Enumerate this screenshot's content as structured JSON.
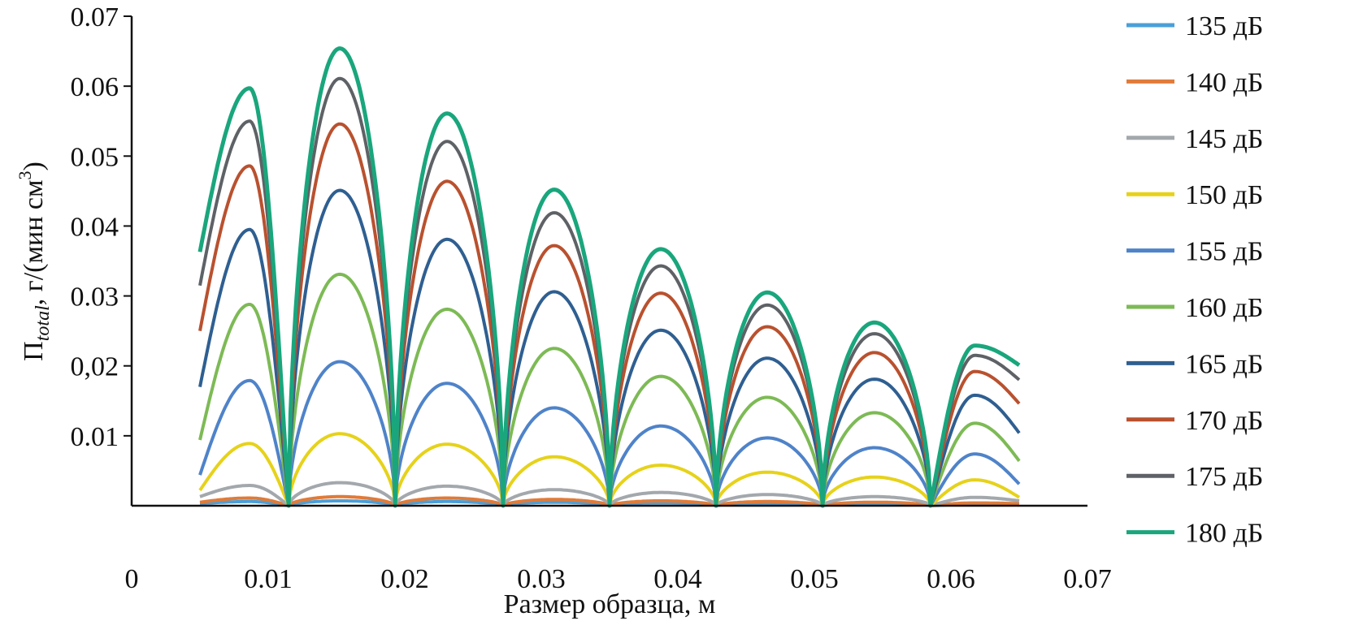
{
  "chart_data": {
    "type": "line",
    "title": "",
    "xlabel": "Размер образца, м",
    "ylabel": {
      "main": "П",
      "sub": "total",
      "rest": ", г/(мин см",
      "sup": "3",
      "close": ")"
    },
    "xlim": [
      0,
      0.07
    ],
    "ylim": [
      0,
      0.07
    ],
    "x_ticks": [
      "0",
      "0.01",
      "0.02",
      "0.03",
      "0.04",
      "0.05",
      "0.06",
      "0.07"
    ],
    "x_tick_values": [
      0,
      0.01,
      0.02,
      0.03,
      0.04,
      0.05,
      0.06,
      0.07
    ],
    "y_ticks": [
      "0.01",
      "0,02",
      "0.03",
      "0.04",
      "0.05",
      "0.06",
      "0.07"
    ],
    "y_tick_values": [
      0.01,
      0.02,
      0.03,
      0.04,
      0.05,
      0.06,
      0.07
    ],
    "grid": false,
    "legend_position": "right",
    "x_range": [
      0.005,
      0.065
    ],
    "zeros": [
      0.0115,
      0.0193,
      0.0272,
      0.035,
      0.0428,
      0.0506,
      0.0585
    ],
    "series": [
      {
        "name": "135 дБ",
        "color": "#4a9fd8",
        "peaks": [
          0.0006,
          0.0007,
          0.0006,
          0.0005,
          0.0004,
          0.0003,
          0.0003,
          0.0002
        ],
        "start": 0.0003,
        "end": 0.0001
      },
      {
        "name": "140 дБ",
        "color": "#e07b39",
        "peaks": [
          0.0011,
          0.0013,
          0.0011,
          0.0009,
          0.0007,
          0.0006,
          0.0005,
          0.0004
        ],
        "start": 0.0005,
        "end": 0.0003
      },
      {
        "name": "145 дБ",
        "color": "#a3a8ad",
        "peaks": [
          0.0029,
          0.0033,
          0.0028,
          0.0023,
          0.0019,
          0.0016,
          0.0013,
          0.0012
        ],
        "start": 0.0013,
        "end": 0.0007
      },
      {
        "name": "150 дБ",
        "color": "#e6d21a",
        "peaks": [
          0.0089,
          0.0103,
          0.0088,
          0.007,
          0.0058,
          0.0048,
          0.0041,
          0.0037
        ],
        "start": 0.0022,
        "end": 0.0012
      },
      {
        "name": "155 дБ",
        "color": "#4f83c9",
        "peaks": [
          0.0179,
          0.0206,
          0.0175,
          0.014,
          0.0114,
          0.0097,
          0.0083,
          0.0074
        ],
        "start": 0.0044,
        "end": 0.0031
      },
      {
        "name": "160 дБ",
        "color": "#7dba55",
        "peaks": [
          0.0288,
          0.0331,
          0.0281,
          0.0225,
          0.0185,
          0.0155,
          0.0133,
          0.0118
        ],
        "start": 0.0094,
        "end": 0.0064
      },
      {
        "name": "165 дБ",
        "color": "#2f5f91",
        "peaks": [
          0.0395,
          0.0451,
          0.0381,
          0.0306,
          0.0251,
          0.0211,
          0.0181,
          0.0158
        ],
        "start": 0.017,
        "end": 0.0104
      },
      {
        "name": "170 дБ",
        "color": "#b9512f",
        "peaks": [
          0.0486,
          0.0546,
          0.0464,
          0.0372,
          0.0304,
          0.0256,
          0.0219,
          0.0192
        ],
        "start": 0.025,
        "end": 0.0146
      },
      {
        "name": "175 дБ",
        "color": "#5e6266",
        "peaks": [
          0.055,
          0.0611,
          0.0521,
          0.0419,
          0.0343,
          0.0287,
          0.0246,
          0.0215
        ],
        "start": 0.0315,
        "end": 0.018
      },
      {
        "name": "180 дБ",
        "color": "#1aa67c",
        "peaks": [
          0.0597,
          0.0654,
          0.0561,
          0.0452,
          0.0367,
          0.0305,
          0.0262,
          0.0229
        ],
        "start": 0.0363,
        "end": 0.0201
      }
    ]
  }
}
